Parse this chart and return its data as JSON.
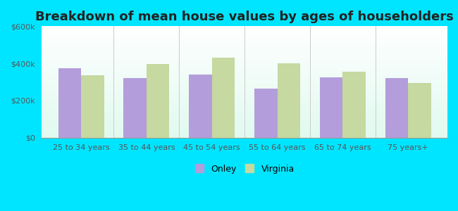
{
  "title": "Breakdown of mean house values by ages of householders",
  "categories": [
    "25 to 34 years",
    "35 to 44 years",
    "45 to 54 years",
    "55 to 64 years",
    "65 to 74 years",
    "75 years+"
  ],
  "onley_values": [
    375000,
    320000,
    340000,
    265000,
    325000,
    320000
  ],
  "virginia_values": [
    335000,
    395000,
    430000,
    400000,
    355000,
    295000
  ],
  "onley_color": "#b39ddb",
  "virginia_color": "#c5d9a0",
  "bg_outer": "#00e5ff",
  "ylim": [
    0,
    600000
  ],
  "yticks": [
    0,
    200000,
    400000,
    600000
  ],
  "ytick_labels": [
    "$0",
    "$200k",
    "$400k",
    "$600k"
  ],
  "legend_labels": [
    "Onley",
    "Virginia"
  ],
  "title_fontsize": 13,
  "tick_fontsize": 8,
  "bar_width": 0.35,
  "separator_color": "#cccccc",
  "tick_color": "#555555"
}
